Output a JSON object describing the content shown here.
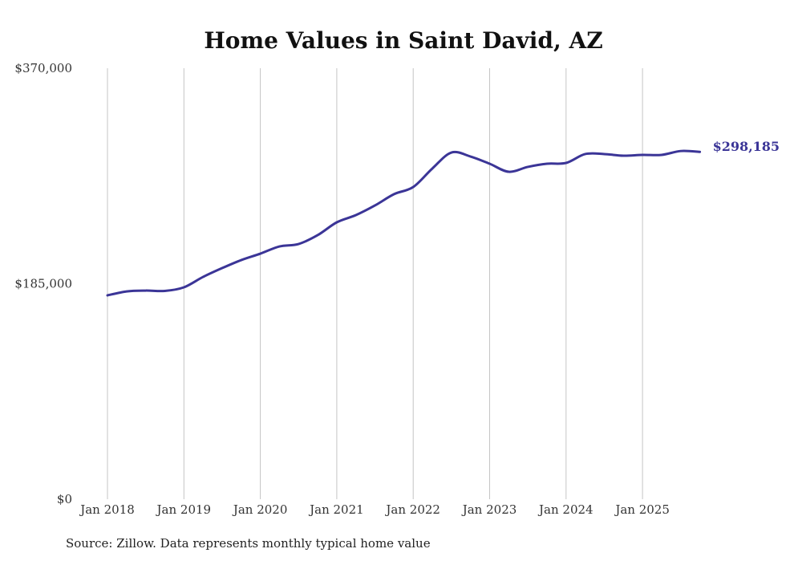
{
  "chart_data": {
    "type": "line",
    "title": "Home Values in Saint David, AZ",
    "xlabel": "",
    "ylabel": "",
    "ylim": [
      0,
      370000
    ],
    "y_ticks": [
      0,
      185000,
      370000
    ],
    "y_tick_labels": [
      "$0",
      "$185,000",
      "$370,000"
    ],
    "x_tick_labels": [
      "Jan 2018",
      "Jan 2019",
      "Jan 2020",
      "Jan 2021",
      "Jan 2022",
      "Jan 2023",
      "Jan 2024",
      "Jan 2025"
    ],
    "x_tick_years": [
      2018,
      2019,
      2020,
      2021,
      2022,
      2023,
      2024,
      2025
    ],
    "grid": "vertical",
    "series": [
      {
        "name": "Typical home value",
        "color": "#3b3597",
        "x": [
          2018.0,
          2018.25,
          2018.5,
          2018.75,
          2019.0,
          2019.25,
          2019.5,
          2019.75,
          2020.0,
          2020.25,
          2020.5,
          2020.75,
          2021.0,
          2021.25,
          2021.5,
          2021.75,
          2022.0,
          2022.25,
          2022.5,
          2022.75,
          2023.0,
          2023.25,
          2023.5,
          2023.75,
          2024.0,
          2024.25,
          2024.5,
          2024.75,
          2025.0,
          2025.25,
          2025.5,
          2025.75
        ],
        "values": [
          175000,
          178400,
          179100,
          178800,
          181900,
          190800,
          198400,
          205300,
          210800,
          217000,
          219100,
          226700,
          237700,
          243900,
          252200,
          261900,
          268000,
          283900,
          297600,
          294200,
          288000,
          281100,
          285300,
          288000,
          288700,
          296300,
          296300,
          294900,
          295600,
          295600,
          298900,
          298185
        ]
      }
    ],
    "end_label": "$298,185"
  },
  "footer": {
    "source": "Source: Zillow. Data represents monthly typical home value"
  }
}
